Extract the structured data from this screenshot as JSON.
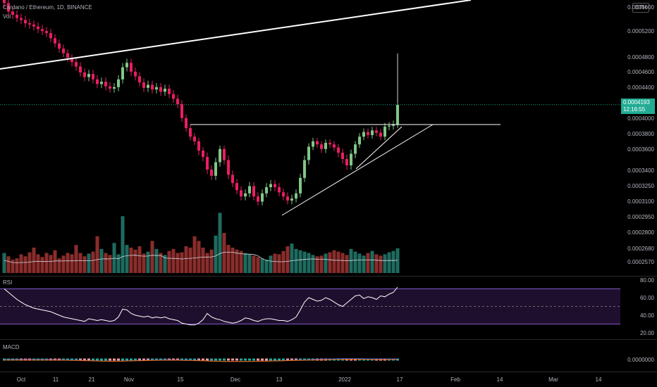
{
  "header": {
    "symbol_title": "Cardano / Ethereum, 1D, BINANCE",
    "volume_label": "Vol"
  },
  "quote_button": "ETH",
  "last_price": {
    "value": "0.0004193",
    "countdown": "12:16:55"
  },
  "price_axis_ticks": [
    "0.0005200",
    "0.0004800",
    "0.0004600",
    "0.0004400",
    "0.0004000",
    "0.0003800",
    "0.0003600",
    "0.0003400",
    "0.0003250",
    "0.0003100",
    "0.0002950",
    "0.0002800",
    "0.0002680",
    "0.0002570"
  ],
  "price_axis_top_partial": "0.0005600",
  "rsi": {
    "label": "RSI",
    "ticks": [
      "80.00",
      "60.00",
      "40.00",
      "20.00"
    ]
  },
  "macd": {
    "label": "MACD",
    "ticks": [
      "0.0000000"
    ]
  },
  "time_axis": [
    "Oct",
    "11",
    "21",
    "Nov",
    "15",
    "Dec",
    "13",
    "2022",
    "17",
    "Feb",
    "14",
    "Mar",
    "14"
  ],
  "colors": {
    "up": "#26a69a",
    "down": "#ef5350",
    "up_bright": "#81c784",
    "down_bright": "#e91e63",
    "rsi_band": "#7e57c2",
    "last_price": "#22ab94"
  },
  "chart_data": {
    "type": "candlestick",
    "title": "Cardano / Ethereum, 1D, BINANCE",
    "candles_close": [
      0.000565,
      0.000552,
      0.000547,
      0.000542,
      0.000539,
      0.000534,
      0.000532,
      0.000529,
      0.000525,
      0.000522,
      0.000519,
      0.000511,
      0.000503,
      0.000495,
      0.000488,
      0.000481,
      0.000475,
      0.000469,
      0.000461,
      0.000455,
      0.000459,
      0.000452,
      0.000446,
      0.000449,
      0.000443,
      0.00044,
      0.000442,
      0.000452,
      0.000468,
      0.000474,
      0.000462,
      0.000456,
      0.000448,
      0.000441,
      0.000445,
      0.000439,
      0.000442,
      0.000436,
      0.00044,
      0.000433,
      0.000427,
      0.00042,
      0.000402,
      0.000389,
      0.000378,
      0.000372,
      0.00036,
      0.000354,
      0.000342,
      0.000336,
      0.000349,
      0.000362,
      0.000351,
      0.000337,
      0.000329,
      0.000322,
      0.000316,
      0.000319,
      0.000326,
      0.000316,
      0.000311,
      0.000319,
      0.000325,
      0.000328,
      0.000325,
      0.00032,
      0.000316,
      0.000312,
      0.000314,
      0.000319,
      0.000334,
      0.000351,
      0.000365,
      0.000372,
      0.000368,
      0.000362,
      0.00037,
      0.000368,
      0.000364,
      0.000358,
      0.000352,
      0.000346,
      0.000357,
      0.000368,
      0.000378,
      0.000384,
      0.00038,
      0.000386,
      0.000383,
      0.000378,
      0.000391,
      0.000392,
      0.000394,
      0.000419
    ],
    "volume_relative": [
      0.3,
      0.25,
      0.2,
      0.22,
      0.28,
      0.25,
      0.31,
      0.38,
      0.28,
      0.24,
      0.3,
      0.27,
      0.34,
      0.22,
      0.26,
      0.3,
      0.28,
      0.42,
      0.3,
      0.25,
      0.29,
      0.32,
      0.55,
      0.36,
      0.3,
      0.27,
      0.45,
      0.28,
      0.85,
      0.42,
      0.38,
      0.35,
      0.4,
      0.29,
      0.32,
      0.48,
      0.36,
      0.3,
      0.27,
      0.33,
      0.36,
      0.3,
      0.31,
      0.4,
      0.38,
      0.55,
      0.48,
      0.38,
      0.3,
      0.35,
      0.56,
      0.9,
      0.6,
      0.42,
      0.38,
      0.35,
      0.33,
      0.3,
      0.28,
      0.26,
      0.24,
      0.22,
      0.2,
      0.26,
      0.29,
      0.28,
      0.33,
      0.4,
      0.44,
      0.36,
      0.34,
      0.32,
      0.3,
      0.27,
      0.25,
      0.26,
      0.29,
      0.31,
      0.34,
      0.32,
      0.3,
      0.27,
      0.36,
      0.32,
      0.29,
      0.26,
      0.3,
      0.33,
      0.28,
      0.26,
      0.28,
      0.31,
      0.33,
      0.37
    ],
    "rsi_values": [
      70,
      66,
      62,
      58,
      55,
      52,
      50,
      48,
      47,
      46,
      45,
      44,
      42,
      40,
      38,
      37,
      36,
      35,
      34,
      33,
      36,
      35,
      34,
      35,
      34,
      33,
      34,
      38,
      47,
      46,
      42,
      40,
      39,
      38,
      39,
      37,
      38,
      37,
      38,
      36,
      35,
      34,
      31,
      30,
      29,
      29,
      31,
      35,
      42,
      38,
      36,
      35,
      33,
      32,
      31,
      32,
      34,
      37,
      36,
      34,
      33,
      35,
      36,
      36,
      35,
      34,
      34,
      33,
      35,
      38,
      46,
      55,
      60,
      58,
      56,
      57,
      60,
      58,
      55,
      52,
      50,
      54,
      58,
      62,
      63,
      59,
      61,
      60,
      58,
      62,
      61,
      64,
      66,
      72
    ],
    "ylim": [
      0.000255,
      0.000575
    ]
  }
}
